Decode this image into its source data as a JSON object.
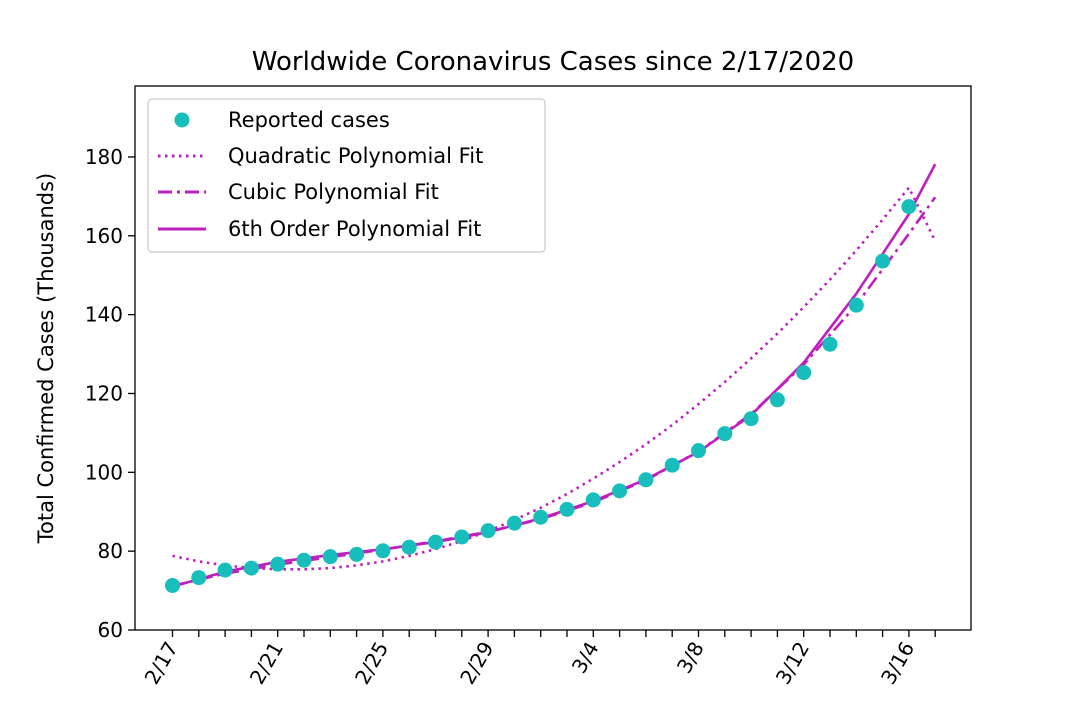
{
  "colors": {
    "points": "#17bebb",
    "fit": "#bf1fbf",
    "axes": "#000000",
    "legend_border": "#cccccc"
  },
  "chart_data": {
    "type": "scatter",
    "title": "Worldwide Coronavirus Cases since 2/17/2020",
    "xlabel": "",
    "ylabel": "Total Confirmed Cases (Thousands)",
    "x_start": "2/17/2020",
    "x_tick_labels": [
      "2/17",
      "2/21",
      "2/25",
      "2/29",
      "3/4",
      "3/8",
      "3/12",
      "3/16"
    ],
    "ylim": [
      60,
      198
    ],
    "y_ticks": [
      60,
      80,
      100,
      120,
      140,
      160,
      180
    ],
    "grid": false,
    "legend": {
      "placement": "top-left",
      "entries": [
        "Reported cases",
        "Quadratic Polynomial Fit",
        "Cubic Polynomial Fit",
        "6th Order Polynomial Fit"
      ]
    },
    "series": [
      {
        "name": "Reported cases",
        "style": "markers",
        "x": [
          "2/17",
          "2/18",
          "2/19",
          "2/20",
          "2/21",
          "2/22",
          "2/23",
          "2/24",
          "2/25",
          "2/26",
          "2/27",
          "2/28",
          "2/29",
          "3/1",
          "3/2",
          "3/3",
          "3/4",
          "3/5",
          "3/6",
          "3/7",
          "3/8",
          "3/9",
          "3/10",
          "3/11",
          "3/12",
          "3/13",
          "3/14",
          "3/15",
          "3/16"
        ],
        "values": [
          71.3,
          73.3,
          75.2,
          75.7,
          76.7,
          77.7,
          78.6,
          79.2,
          80.1,
          81.0,
          82.3,
          83.6,
          85.2,
          87.1,
          88.6,
          90.6,
          93.0,
          95.3,
          98.1,
          101.8,
          105.5,
          109.8,
          113.6,
          118.4,
          125.3,
          132.5,
          142.4,
          153.6,
          167.4
        ]
      },
      {
        "name": "Quadratic Polynomial Fit",
        "style": "dotted",
        "x": [
          "2/17",
          "2/18",
          "2/19",
          "2/20",
          "2/21",
          "2/22",
          "2/23",
          "2/24",
          "2/25",
          "2/26",
          "2/27",
          "2/28",
          "2/29",
          "3/1",
          "3/2",
          "3/3",
          "3/4",
          "3/5",
          "3/6",
          "3/7",
          "3/8",
          "3/9",
          "3/10",
          "3/11",
          "3/12",
          "3/13",
          "3/14",
          "3/15",
          "3/16",
          "3/17"
        ],
        "values": [
          78.8,
          77.4,
          76.4,
          75.7,
          75.4,
          75.4,
          75.7,
          76.4,
          77.4,
          78.8,
          80.5,
          82.6,
          85.1,
          87.9,
          91.0,
          94.5,
          98.4,
          102.6,
          107.1,
          112.0,
          117.3,
          122.9,
          128.9,
          135.2,
          141.9,
          148.9,
          156.3,
          164.1,
          172.2,
          158.7
        ]
      },
      {
        "name": "Cubic Polynomial Fit",
        "style": "dashdot",
        "x": [
          "2/17",
          "2/19",
          "2/21",
          "2/23",
          "2/25",
          "2/27",
          "2/29",
          "3/2",
          "3/4",
          "3/6",
          "3/8",
          "3/10",
          "3/12",
          "3/14",
          "3/16",
          "3/17"
        ],
        "values": [
          71.2,
          74.3,
          76.6,
          78.5,
          80.4,
          82.5,
          84.9,
          88.1,
          92.4,
          98.0,
          105.3,
          114.8,
          127.3,
          142.5,
          160.5,
          169.8
        ]
      },
      {
        "name": "6th Order Polynomial Fit",
        "style": "solid",
        "x": [
          "2/17",
          "2/19",
          "2/21",
          "2/23",
          "2/25",
          "2/27",
          "2/29",
          "3/2",
          "3/4",
          "3/6",
          "3/8",
          "3/10",
          "3/12",
          "3/14",
          "3/16",
          "3/17"
        ],
        "values": [
          71.0,
          74.8,
          77.3,
          79.0,
          80.5,
          82.3,
          84.8,
          88.3,
          92.7,
          98.2,
          105.2,
          114.5,
          127.8,
          145.3,
          165.5,
          178.2
        ]
      }
    ]
  }
}
